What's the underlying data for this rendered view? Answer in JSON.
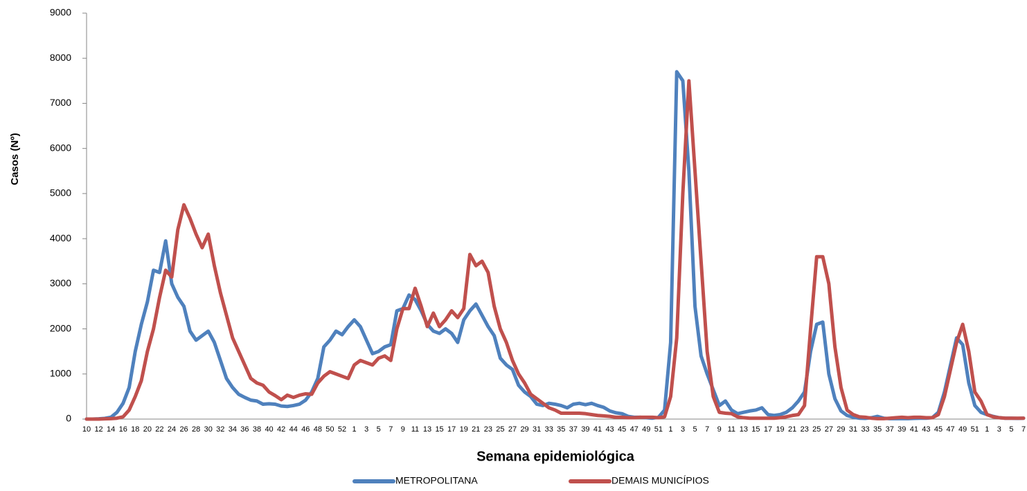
{
  "chart_data": {
    "type": "line",
    "y_label": "Casos (Nº)",
    "x_label": "Semana epidemiológica",
    "ylim": [
      0,
      9000
    ],
    "yticks": [
      0,
      1000,
      2000,
      3000,
      4000,
      5000,
      6000,
      7000,
      8000,
      9000
    ],
    "legend": "bottom",
    "categories": [
      "10",
      null,
      "12",
      null,
      "14",
      null,
      "16",
      null,
      "18",
      null,
      "20",
      null,
      "22",
      null,
      "24",
      null,
      "26",
      null,
      "28",
      null,
      "30",
      null,
      "32",
      null,
      "34",
      null,
      "36",
      null,
      "38",
      null,
      "40",
      null,
      "42",
      null,
      "44",
      null,
      "46",
      null,
      "48",
      null,
      "50",
      null,
      "52",
      null,
      "1",
      null,
      "3",
      null,
      "5",
      null,
      "7",
      null,
      "9",
      null,
      "11",
      null,
      "13",
      null,
      "15",
      null,
      "17",
      null,
      "19",
      null,
      "21",
      null,
      "23",
      null,
      "25",
      null,
      "27",
      null,
      "29",
      null,
      "31",
      null,
      "33",
      null,
      "35",
      null,
      "37",
      null,
      "39",
      null,
      "41",
      null,
      "43",
      null,
      "45",
      null,
      "47",
      null,
      "49",
      null,
      "51",
      null,
      "1",
      null,
      "3",
      null,
      "5",
      null,
      "7",
      null,
      "9",
      null,
      "11",
      null,
      "13",
      null,
      "15",
      null,
      "17",
      null,
      "19",
      null,
      "21",
      null,
      "23",
      null,
      "25",
      null,
      "27",
      null,
      "29",
      null,
      "31",
      null,
      "33",
      null,
      "35",
      null,
      "37",
      null,
      "39",
      null,
      "41",
      null,
      "43",
      null,
      "45",
      null,
      "47",
      null,
      "49",
      null,
      "51",
      null,
      "1",
      null,
      "3",
      null,
      "5",
      null,
      "7"
    ],
    "series": [
      {
        "name": "METROPOLITANA",
        "color": "#4f81bd",
        "values": [
          0,
          0,
          5,
          15,
          40,
          150,
          350,
          700,
          1500,
          2100,
          2600,
          3300,
          3250,
          3950,
          3000,
          2700,
          2500,
          1950,
          1750,
          1850,
          1950,
          1700,
          1300,
          900,
          700,
          550,
          480,
          420,
          400,
          330,
          340,
          330,
          290,
          280,
          300,
          330,
          420,
          600,
          900,
          1600,
          1750,
          1950,
          1870,
          2050,
          2200,
          2050,
          1750,
          1450,
          1500,
          1600,
          1650,
          2400,
          2450,
          2750,
          2650,
          2400,
          2100,
          1950,
          1900,
          2000,
          1900,
          1700,
          2200,
          2400,
          2550,
          2300,
          2050,
          1850,
          1350,
          1200,
          1100,
          750,
          600,
          500,
          330,
          300,
          350,
          330,
          300,
          250,
          330,
          350,
          320,
          350,
          300,
          260,
          180,
          140,
          120,
          60,
          40,
          40,
          30,
          20,
          40,
          200,
          1700,
          7700,
          7500,
          5500,
          2500,
          1400,
          1000,
          650,
          300,
          400,
          200,
          120,
          150,
          180,
          200,
          250,
          100,
          80,
          100,
          150,
          250,
          400,
          600,
          1500,
          2100,
          2150,
          1000,
          450,
          180,
          80,
          40,
          20,
          15,
          30,
          60,
          20,
          10,
          10,
          10,
          10,
          15,
          20,
          20,
          30,
          150,
          600,
          1200,
          1800,
          1650,
          800,
          300,
          150,
          100,
          60,
          30,
          20,
          20,
          15,
          20
        ]
      },
      {
        "name": "DEMAIS MUNICÍPIOS",
        "color": "#c0504d",
        "values": [
          0,
          0,
          0,
          5,
          10,
          20,
          50,
          200,
          500,
          850,
          1500,
          2000,
          2700,
          3300,
          3150,
          4200,
          4750,
          4450,
          4100,
          3800,
          4100,
          3400,
          2800,
          2300,
          1800,
          1500,
          1200,
          900,
          800,
          750,
          600,
          520,
          430,
          530,
          480,
          530,
          560,
          550,
          800,
          950,
          1050,
          1000,
          950,
          900,
          1200,
          1300,
          1250,
          1200,
          1350,
          1400,
          1300,
          2000,
          2450,
          2450,
          2900,
          2500,
          2050,
          2350,
          2050,
          2200,
          2400,
          2250,
          2450,
          3650,
          3400,
          3500,
          3250,
          2500,
          2000,
          1700,
          1300,
          1000,
          800,
          550,
          450,
          350,
          250,
          200,
          130,
          130,
          130,
          130,
          120,
          100,
          80,
          70,
          60,
          40,
          40,
          30,
          30,
          40,
          40,
          40,
          30,
          50,
          500,
          1800,
          5000,
          7500,
          5500,
          3500,
          1500,
          500,
          150,
          130,
          120,
          50,
          30,
          20,
          20,
          20,
          20,
          20,
          30,
          50,
          80,
          100,
          300,
          2000,
          3600,
          3600,
          3000,
          1600,
          700,
          200,
          100,
          50,
          40,
          20,
          10,
          10,
          20,
          30,
          40,
          30,
          40,
          40,
          30,
          30,
          100,
          500,
          1100,
          1700,
          2100,
          1500,
          600,
          400,
          100,
          50,
          30,
          20,
          20,
          20,
          20
        ]
      }
    ]
  }
}
